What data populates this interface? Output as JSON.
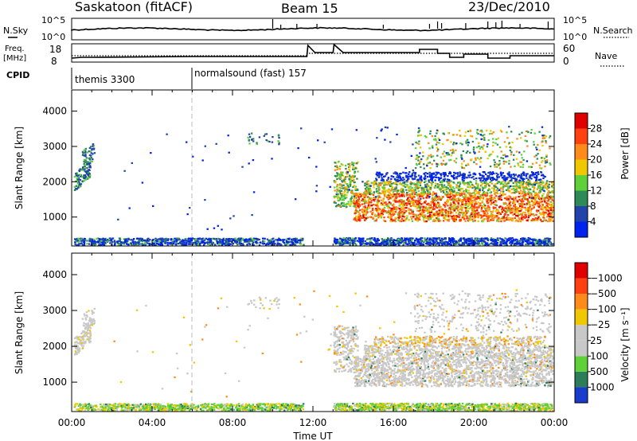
{
  "header": {
    "title": "Saskatoon (fitACF)",
    "beam": "Beam 15",
    "date": "23/Dec/2010"
  },
  "noise_panel": {
    "left_label": "N.Sky",
    "right_label": "N.Search",
    "left_ticks": [
      "10^5",
      "10^0"
    ],
    "right_ticks": [
      "10^5",
      "10^0"
    ]
  },
  "freq_panel": {
    "left_label_1": "Freq.",
    "left_label_2": "[MHz]",
    "right_label": "Nave",
    "left_ticks": [
      "18",
      "8"
    ],
    "right_ticks": [
      "60",
      "0"
    ]
  },
  "cpid_panel": {
    "label": "CPID",
    "segments": [
      {
        "label": "themis 3300",
        "start_hour": 0
      },
      {
        "label": "normalsound (fast) 157",
        "start_hour": 6
      }
    ]
  },
  "chart_data": [
    {
      "type": "heatmap",
      "name": "power",
      "ylabel": "Slant Range [km]",
      "colorbar_label": "Power [dB]",
      "colorbar_ticks": [
        "4",
        "8",
        "12",
        "16",
        "20",
        "24",
        "28"
      ],
      "colors": [
        "#0022ee",
        "#2244aa",
        "#2e8b57",
        "#5fcf3a",
        "#f0c800",
        "#ff8c1a",
        "#ff4010",
        "#e00000"
      ],
      "yticks": [
        "1000",
        "2000",
        "3000",
        "4000"
      ],
      "ytick_values": [
        1000,
        2000,
        3000,
        4000
      ],
      "ylim": [
        180,
        4600
      ],
      "xlim": [
        0,
        24
      ]
    },
    {
      "type": "heatmap",
      "name": "velocity",
      "xlabel": "Time UT",
      "ylabel": "Slant Range [km]",
      "colorbar_label": "Velocity [m s⁻¹]",
      "colorbar_ticks": [
        "1000",
        "500",
        "100",
        "25",
        "−25",
        "−100",
        "−500",
        "−1000"
      ],
      "colors": [
        "#1a3ccc",
        "#2e7d5a",
        "#5fcf3a",
        "#c8c8c8",
        "#c8c8c8",
        "#f0c800",
        "#ff8c1a",
        "#ff4010",
        "#e00000"
      ],
      "yticks": [
        "1000",
        "2000",
        "3000",
        "4000"
      ],
      "ytick_values": [
        1000,
        2000,
        3000,
        4000
      ],
      "xticks": [
        "00:00",
        "04:00",
        "08:00",
        "12:00",
        "16:00",
        "20:00",
        "00:00"
      ],
      "xtick_values": [
        0,
        4,
        8,
        12,
        16,
        20,
        24
      ],
      "ylim": [
        180,
        4600
      ],
      "xlim": [
        0,
        24
      ]
    }
  ]
}
